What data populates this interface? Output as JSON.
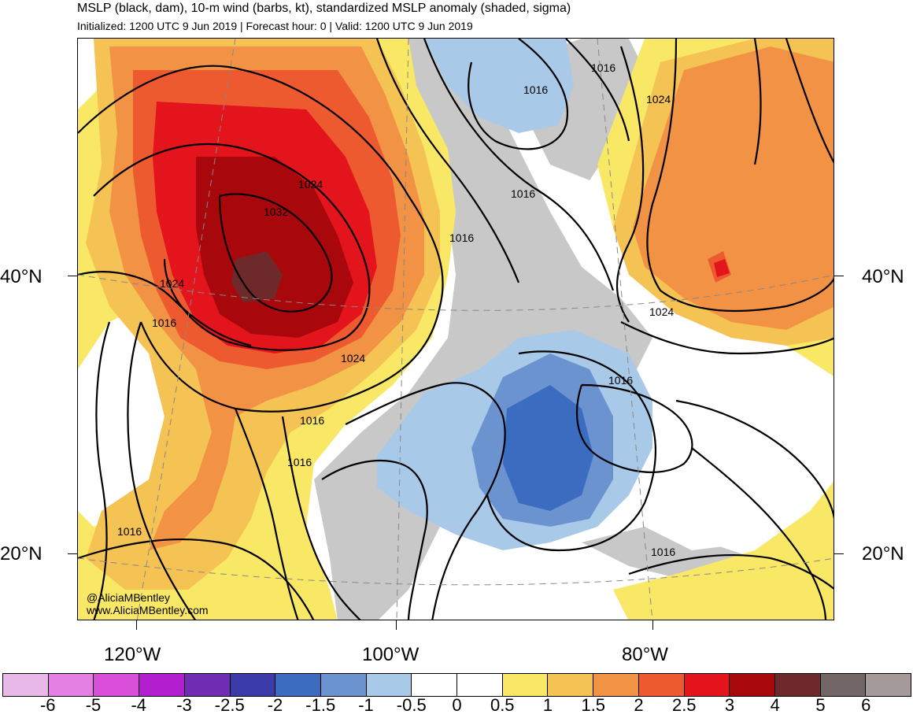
{
  "header": {
    "title": "MSLP (black, dam), 10-m wind (barbs, kt), standardized MSLP anomaly (shaded, sigma)",
    "subtitle": "Initialized: 1200 UTC 9 Jun 2019 | Forecast hour: 0 | Valid: 1200 UTC 9 Jun 2019"
  },
  "axes": {
    "lat_labels": [
      "40°N",
      "20°N"
    ],
    "lon_labels": [
      "120°W",
      "100°W",
      "80°W"
    ]
  },
  "contour_labels": [
    "1016",
    "1024",
    "1016",
    "1024",
    "1032",
    "1016",
    "1024",
    "1016",
    "1024",
    "1016",
    "1016",
    "1024",
    "1016",
    "1016",
    "1016",
    "1016"
  ],
  "credit": {
    "handle": "@AliciaMBentley",
    "website": "www.AliciaMBentley.com"
  },
  "colorbar": {
    "labels": [
      "-6",
      "-5",
      "-4",
      "-3",
      "-2.5",
      "-2",
      "-1.5",
      "-1",
      "-0.5",
      "0",
      "0.5",
      "1",
      "1.5",
      "2",
      "2.5",
      "3",
      "4",
      "5",
      "6"
    ],
    "colors": [
      "#e8b9e8",
      "#e47fe4",
      "#d94fd9",
      "#b31fcf",
      "#6f2db3",
      "#3a3aa8",
      "#3b6cc0",
      "#6b93d0",
      "#a9c9e8",
      "#ffffff",
      "#ffffff",
      "#f9e866",
      "#f5c254",
      "#f29245",
      "#ee5a2f",
      "#e3141b",
      "#a8070b",
      "#6e2a2a",
      "#726666",
      "#a59a9a"
    ]
  },
  "colors": {
    "ocean": "#ffffff",
    "land_neutral": "#c8c8c8",
    "positive_1": "#f9e866",
    "positive_2": "#f5c254",
    "positive_3": "#f29245",
    "positive_4": "#ee5a2f",
    "positive_5": "#e3141b",
    "positive_6": "#a8070b",
    "positive_7": "#6e2a2a",
    "negative_1": "#a9c9e8",
    "negative_2": "#6b93d0",
    "negative_3": "#3b6cc0"
  }
}
